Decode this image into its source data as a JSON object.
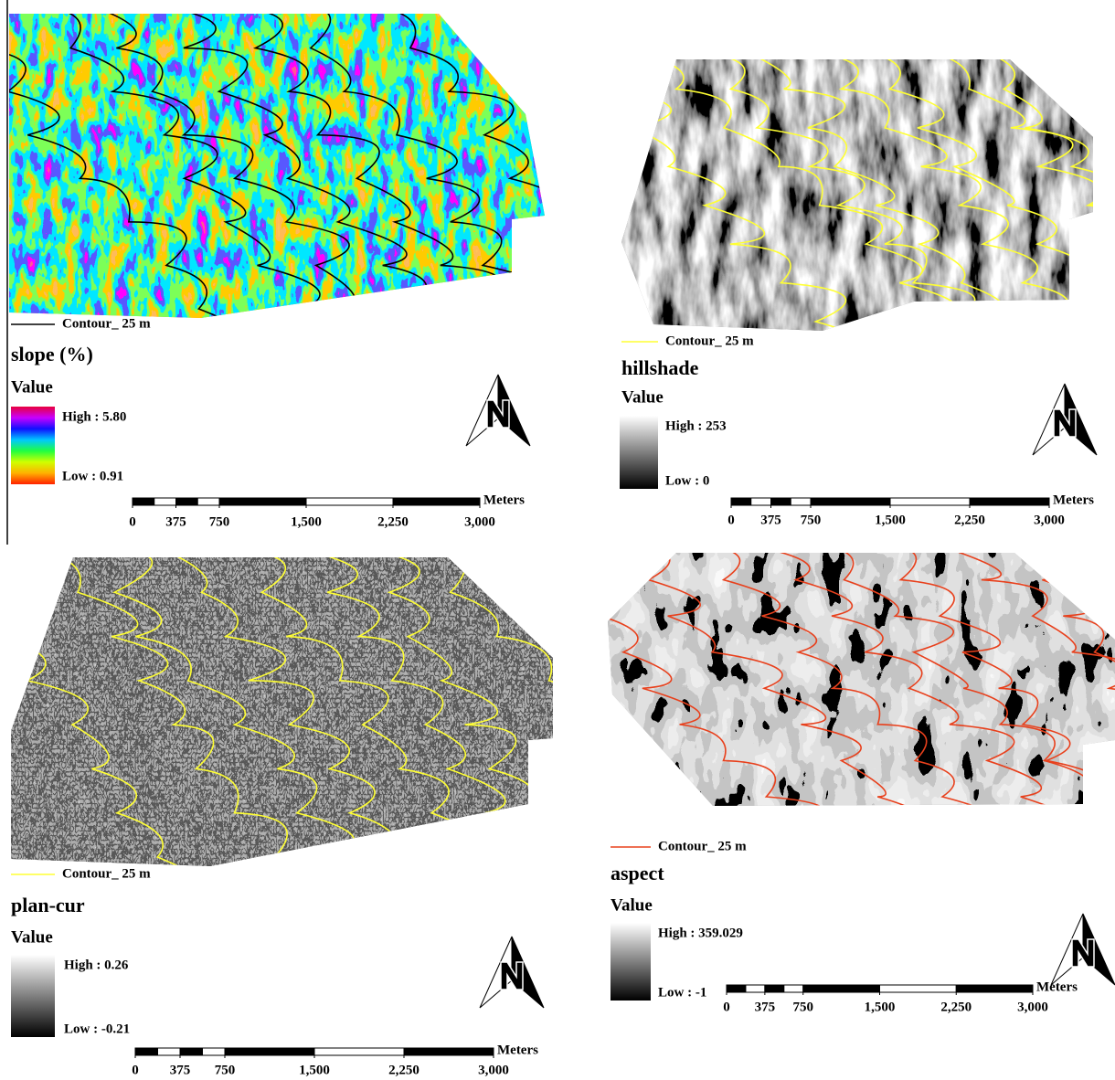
{
  "panels": [
    {
      "contour_label": "Contour_ 25 m",
      "contour_color": "#000000",
      "layer_title": "slope (%)",
      "value_heading": "Value",
      "high_label": "High : 5.80",
      "low_label": "Low : 0.91",
      "ramp": [
        "#e8003c",
        "#c800ff",
        "#1010ff",
        "#00c8ff",
        "#20ff40",
        "#d0ff00",
        "#ffb000",
        "#ff2000"
      ],
      "scale_bar": {
        "unit": "Meters",
        "ticks": [
          0,
          375,
          750,
          {
            "value": 1500,
            "label": "1,500"
          },
          {
            "value": 2250,
            "label": "2,250"
          },
          {
            "value": 3000,
            "label": "3,000"
          }
        ]
      }
    },
    {
      "contour_label": "Contour_ 25 m",
      "contour_color": "#ffff33",
      "layer_title": "hillshade",
      "value_heading": "Value",
      "high_label": "High : 253",
      "low_label": "Low : 0",
      "ramp": [
        "#ffffff",
        "#000000"
      ],
      "scale_bar": {
        "unit": "Meters",
        "ticks": [
          0,
          375,
          750,
          {
            "value": 1500,
            "label": "1,500"
          },
          {
            "value": 2250,
            "label": "2,250"
          },
          {
            "value": 3000,
            "label": "3,000"
          }
        ]
      }
    },
    {
      "contour_label": "Contour_ 25 m",
      "contour_color": "#ffff33",
      "layer_title": "plan-cur",
      "value_heading": "Value",
      "high_label": "High : 0.26",
      "low_label": "Low : -0.21",
      "ramp": [
        "#ffffff",
        "#000000"
      ],
      "scale_bar": {
        "unit": "Meters",
        "ticks": [
          0,
          375,
          750,
          {
            "value": 1500,
            "label": "1,500"
          },
          {
            "value": 2250,
            "label": "2,250"
          },
          {
            "value": 3000,
            "label": "3,000"
          }
        ]
      }
    },
    {
      "contour_label": "Contour_ 25 m",
      "contour_color": "#e8401c",
      "layer_title": "aspect",
      "value_heading": "Value",
      "high_label": "High : 359.029",
      "low_label": "Low : -1",
      "ramp": [
        "#ffffff",
        "#000000"
      ],
      "scale_bar": {
        "unit": "Meters",
        "ticks": [
          0,
          375,
          750,
          {
            "value": 1500,
            "label": "1,500"
          },
          {
            "value": 2250,
            "label": "2,250"
          },
          {
            "value": 3000,
            "label": "3,000"
          }
        ]
      }
    }
  ]
}
